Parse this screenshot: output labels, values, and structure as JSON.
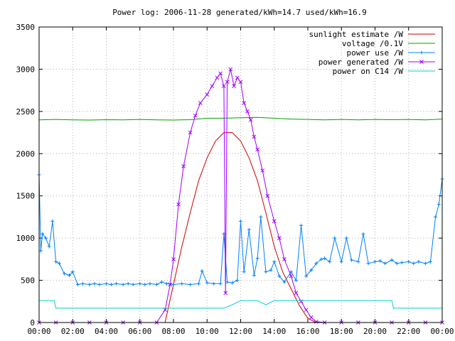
{
  "chart_data": {
    "type": "line",
    "title": "Power log: 2006-11-28 generated/kWh=14.7 used/kWh=16.9",
    "xlabel": "",
    "ylabel": "",
    "xlim": [
      0,
      24
    ],
    "ylim": [
      0,
      3500
    ],
    "grid": true,
    "legend_position": "top-right",
    "x_ticks": [
      "00:00",
      "02:00",
      "04:00",
      "06:00",
      "08:00",
      "10:00",
      "12:00",
      "14:00",
      "16:00",
      "18:00",
      "20:00",
      "22:00",
      "00:00"
    ],
    "y_ticks": [
      "0",
      "500",
      "1000",
      "1500",
      "2000",
      "2500",
      "3000",
      "3500"
    ],
    "series": [
      {
        "name": "sunlight estimate /W",
        "color": "#cc0000",
        "marker": "none",
        "x": [
          7.5,
          8.0,
          8.5,
          9.0,
          9.5,
          10.0,
          10.5,
          11.0,
          11.5,
          12.0,
          12.5,
          13.0,
          13.5,
          14.0,
          14.5,
          15.0,
          15.5,
          16.0,
          16.5
        ],
        "y": [
          0,
          450,
          900,
          1300,
          1680,
          1950,
          2150,
          2250,
          2250,
          2150,
          1950,
          1680,
          1300,
          900,
          600,
          400,
          200,
          50,
          0
        ]
      },
      {
        "name": "voltage /0.1V",
        "color": "#00a000",
        "marker": "none",
        "x": [
          0,
          1,
          2,
          3,
          4,
          5,
          6,
          7,
          8,
          9,
          10,
          11,
          12,
          13,
          14,
          15,
          16,
          17,
          18,
          19,
          20,
          21,
          22,
          23,
          24
        ],
        "y": [
          2400,
          2405,
          2400,
          2398,
          2402,
          2400,
          2405,
          2400,
          2398,
          2402,
          2420,
          2420,
          2425,
          2430,
          2420,
          2410,
          2405,
          2400,
          2405,
          2400,
          2405,
          2402,
          2405,
          2400,
          2410
        ]
      },
      {
        "name": "power use /W",
        "color": "#0080ff",
        "marker": "plus",
        "x": [
          0,
          0.1,
          0.2,
          0.4,
          0.6,
          0.8,
          1.0,
          1.2,
          1.5,
          1.8,
          2.0,
          2.3,
          2.6,
          3.0,
          3.3,
          3.6,
          4.0,
          4.3,
          4.6,
          5.0,
          5.3,
          5.6,
          6.0,
          6.3,
          6.6,
          7.0,
          7.3,
          7.6,
          8.0,
          8.5,
          9.0,
          9.5,
          9.7,
          10.0,
          10.4,
          10.8,
          11.0,
          11.2,
          11.5,
          11.8,
          12.0,
          12.2,
          12.5,
          12.8,
          13.0,
          13.2,
          13.5,
          13.8,
          14.0,
          14.3,
          14.6,
          15.0,
          15.3,
          15.6,
          15.9,
          16.2,
          16.5,
          16.8,
          17.0,
          17.3,
          17.6,
          18.0,
          18.3,
          18.6,
          19.0,
          19.3,
          19.6,
          20.0,
          20.3,
          20.6,
          21.0,
          21.3,
          21.6,
          22.0,
          22.3,
          22.6,
          23.0,
          23.3,
          23.6,
          23.8,
          24.0
        ],
        "y": [
          1750,
          850,
          1050,
          1000,
          900,
          1200,
          720,
          700,
          580,
          560,
          600,
          450,
          460,
          450,
          460,
          450,
          460,
          450,
          460,
          450,
          460,
          450,
          460,
          450,
          460,
          450,
          480,
          460,
          450,
          460,
          450,
          460,
          610,
          470,
          460,
          460,
          1050,
          480,
          470,
          500,
          1200,
          600,
          1100,
          560,
          760,
          1250,
          600,
          620,
          720,
          550,
          480,
          600,
          500,
          1150,
          550,
          620,
          700,
          750,
          760,
          720,
          1000,
          720,
          1000,
          740,
          720,
          1050,
          700,
          720,
          730,
          700,
          740,
          700,
          710,
          720,
          700,
          720,
          700,
          720,
          1250,
          1400,
          1700
        ]
      },
      {
        "name": "power generated /W",
        "color": "#a000ff",
        "marker": "x",
        "x": [
          0,
          1,
          2,
          3,
          4,
          5,
          6,
          7,
          7.5,
          7.8,
          8.0,
          8.3,
          8.6,
          9.0,
          9.3,
          9.6,
          10.0,
          10.3,
          10.6,
          10.8,
          11.0,
          11.1,
          11.2,
          11.4,
          11.6,
          11.8,
          12.0,
          12.2,
          12.4,
          12.6,
          12.8,
          13.0,
          13.3,
          13.6,
          14.0,
          14.3,
          14.6,
          15.0,
          15.3,
          15.6,
          15.9,
          16.2,
          16.5,
          17.0,
          18,
          19,
          20,
          21,
          22,
          23,
          24
        ],
        "y": [
          0,
          0,
          0,
          0,
          0,
          0,
          0,
          0,
          150,
          450,
          750,
          1400,
          1850,
          2250,
          2450,
          2600,
          2700,
          2800,
          2900,
          2950,
          2800,
          350,
          2850,
          3000,
          2800,
          2900,
          2850,
          2600,
          2500,
          2400,
          2200,
          2050,
          1800,
          1500,
          1200,
          1000,
          750,
          550,
          350,
          250,
          150,
          60,
          10,
          0,
          0,
          0,
          0,
          0,
          0,
          0,
          0
        ]
      },
      {
        "name": "power on C14 /W",
        "color": "#00d0d0",
        "marker": "none",
        "x": [
          0,
          0.9,
          1.0,
          10.5,
          11.0,
          11.5,
          12.0,
          12.5,
          13.0,
          13.5,
          14.0,
          14.5,
          15.0,
          15.5,
          16.0,
          16.5,
          17.0,
          18.0,
          19.0,
          20.0,
          21.0,
          21.1,
          22.0,
          23.0,
          24.0
        ],
        "y": [
          260,
          260,
          170,
          170,
          170,
          210,
          260,
          260,
          260,
          210,
          260,
          260,
          260,
          260,
          260,
          260,
          260,
          260,
          260,
          260,
          260,
          170,
          170,
          170,
          170
        ]
      }
    ]
  }
}
